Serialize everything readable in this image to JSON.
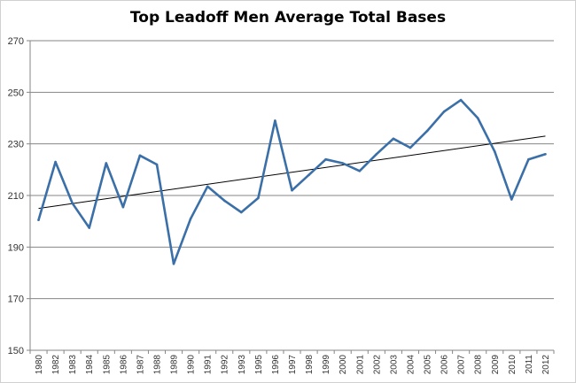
{
  "chart_data": {
    "type": "line",
    "title": "Top Leadoff Men Average Total Bases",
    "xlabel": "",
    "ylabel": "",
    "ylim": [
      150,
      270
    ],
    "yticks": [
      150,
      170,
      190,
      210,
      230,
      250,
      270
    ],
    "grid": true,
    "legend": "none",
    "categories": [
      "1980",
      "1982",
      "1983",
      "1984",
      "1985",
      "1986",
      "1987",
      "1988",
      "1989",
      "1990",
      "1991",
      "1992",
      "1993",
      "1995",
      "1996",
      "1997",
      "1998",
      "1999",
      "2000",
      "2001",
      "2002",
      "2003",
      "2004",
      "2005",
      "2006",
      "2007",
      "2008",
      "2009",
      "2010",
      "2011",
      "2012"
    ],
    "series": [
      {
        "color": "#3a6fa8",
        "values": [
          200.5,
          223,
          207,
          197.5,
          222.5,
          205.5,
          225.5,
          222,
          183.5,
          201,
          213.5,
          208,
          203.5,
          209,
          239,
          212,
          218,
          224,
          222.5,
          219.5,
          226,
          232,
          228.5,
          235,
          242.5,
          247,
          240,
          227,
          208.5,
          224,
          226
        ]
      }
    ],
    "trendline": {
      "type": "linear",
      "color": "#000000",
      "start": 205,
      "end": 233
    }
  }
}
